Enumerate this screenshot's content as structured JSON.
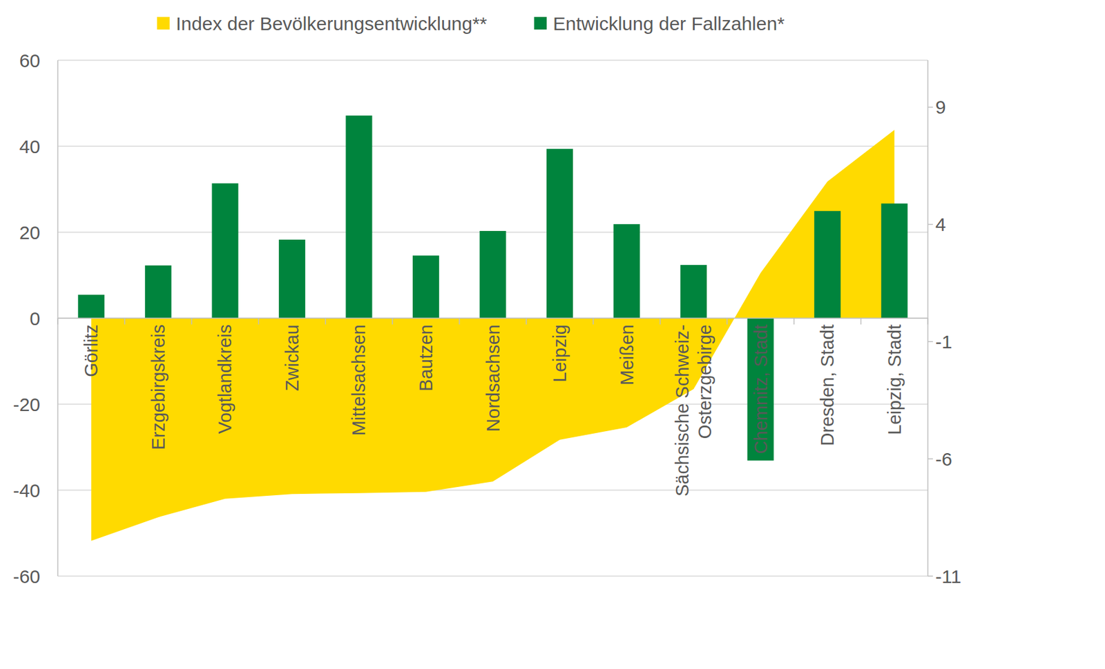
{
  "chart_data": {
    "type": "bar",
    "categories": [
      "Görlitz",
      "Erzgebirgskreis",
      "Vogtlandkreis",
      "Zwickau",
      "Mittelsachsen",
      "Bautzen",
      "Nordsachsen",
      "Leipzig",
      "Meißen",
      "Sächsische Schweiz-Osterzgebirge",
      "Chemnitz, Stadt",
      "Dresden, Stadt",
      "Leipzig, Stadt"
    ],
    "series": [
      {
        "name": "Index der Bevölkerungsentwicklung**",
        "type": "area",
        "color": "#ffda00",
        "values": [
          -51.8,
          -46.3,
          -42.0,
          -40.9,
          -40.7,
          -40.4,
          -38.0,
          -28.3,
          -25.4,
          -16.5,
          10.5,
          31.8,
          43.8
        ]
      },
      {
        "name": "Entwicklung der Fallzahlen*",
        "type": "bar",
        "axis": "y2",
        "color": "#00843d",
        "values": [
          1.0,
          2.25,
          5.75,
          3.35,
          8.64,
          2.67,
          3.72,
          7.22,
          4.01,
          2.27,
          -6.07,
          4.57,
          4.89
        ]
      }
    ],
    "ylim": [
      -60,
      60
    ],
    "yticks": [
      -60,
      -40,
      -20,
      0,
      20,
      40,
      60
    ],
    "y2lim": [
      -11,
      11
    ],
    "y2ticks": [
      -11,
      -6,
      -1,
      4,
      9
    ],
    "grid": true,
    "legend": "top"
  }
}
